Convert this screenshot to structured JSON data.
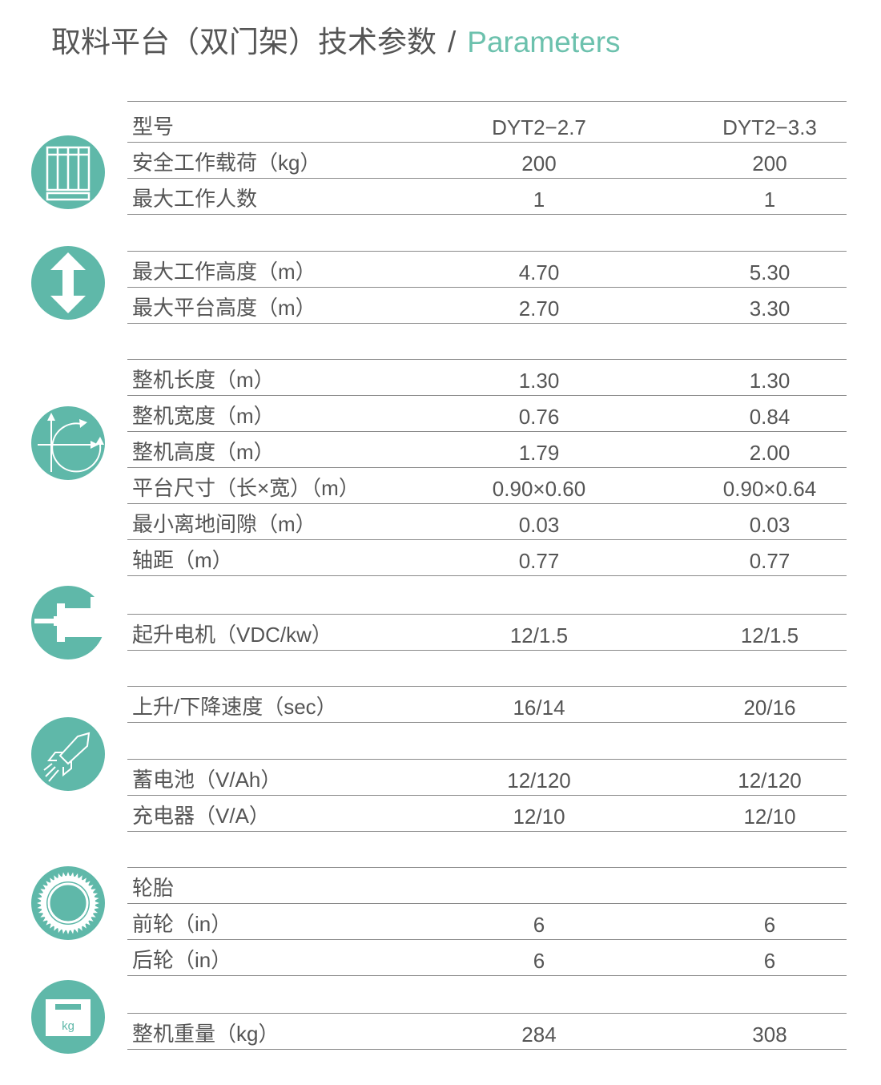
{
  "title": {
    "cn": "取料平台（双门架）技术参数",
    "separator": "/",
    "en": "Parameters"
  },
  "accent_color": "#5fb8a9",
  "groups": [
    {
      "icon": "platform-icon",
      "rows": [
        {
          "label": "型号",
          "v1": "DYT2−2.7",
          "v2": "DYT2−3.3",
          "head": true
        },
        {
          "label": "安全工作载荷（kg）",
          "v1": "200",
          "v2": "200"
        },
        {
          "label": "最大工作人数",
          "v1": "1",
          "v2": "1"
        }
      ]
    },
    {
      "icon": "height-arrow-icon",
      "rows": [
        {
          "label": "最大工作高度（m）",
          "v1": "4.70",
          "v2": "5.30"
        },
        {
          "label": "最大平台高度（m）",
          "v1": "2.70",
          "v2": "3.30"
        }
      ]
    },
    {
      "icon": "dimensions-icon",
      "rows": [
        {
          "label": "整机长度（m）",
          "v1": "1.30",
          "v2": "1.30"
        },
        {
          "label": "整机宽度（m）",
          "v1": "0.76",
          "v2": "0.84"
        },
        {
          "label": "整机高度（m）",
          "v1": "1.79",
          "v2": "2.00"
        },
        {
          "label": "平台尺寸（长×宽）（m）",
          "v1": "0.90×0.60",
          "v2": "0.90×0.64"
        },
        {
          "label": "最小离地间隙（m）",
          "v1": "0.03",
          "v2": "0.03"
        },
        {
          "label": "轴距（m）",
          "v1": "0.77",
          "v2": "0.77"
        }
      ]
    },
    {
      "icon": "motor-icon",
      "rows": [
        {
          "label": "起升电机（VDC/kw）",
          "v1": "12/1.5",
          "v2": "12/1.5"
        }
      ]
    },
    {
      "icon": "rocket-icon",
      "rows": [
        {
          "label": "上升/下降速度（sec）",
          "v1": "16/14",
          "v2": "20/16"
        }
      ]
    },
    {
      "icon": "",
      "rows": [
        {
          "label": "蓄电池（V/Ah）",
          "v1": "12/120",
          "v2": "12/120"
        },
        {
          "label": "充电器（V/A）",
          "v1": "12/10",
          "v2": "12/10"
        }
      ]
    },
    {
      "icon": "tire-icon",
      "rows": [
        {
          "label": "轮胎",
          "v1": "",
          "v2": ""
        },
        {
          "label": "前轮（in）",
          "v1": "6",
          "v2": "6"
        },
        {
          "label": "后轮（in）",
          "v1": "6",
          "v2": "6"
        }
      ]
    },
    {
      "icon": "weight-icon",
      "icon_text": "kg",
      "rows": [
        {
          "label": "整机重量（kg）",
          "v1": "284",
          "v2": "308"
        }
      ]
    }
  ]
}
